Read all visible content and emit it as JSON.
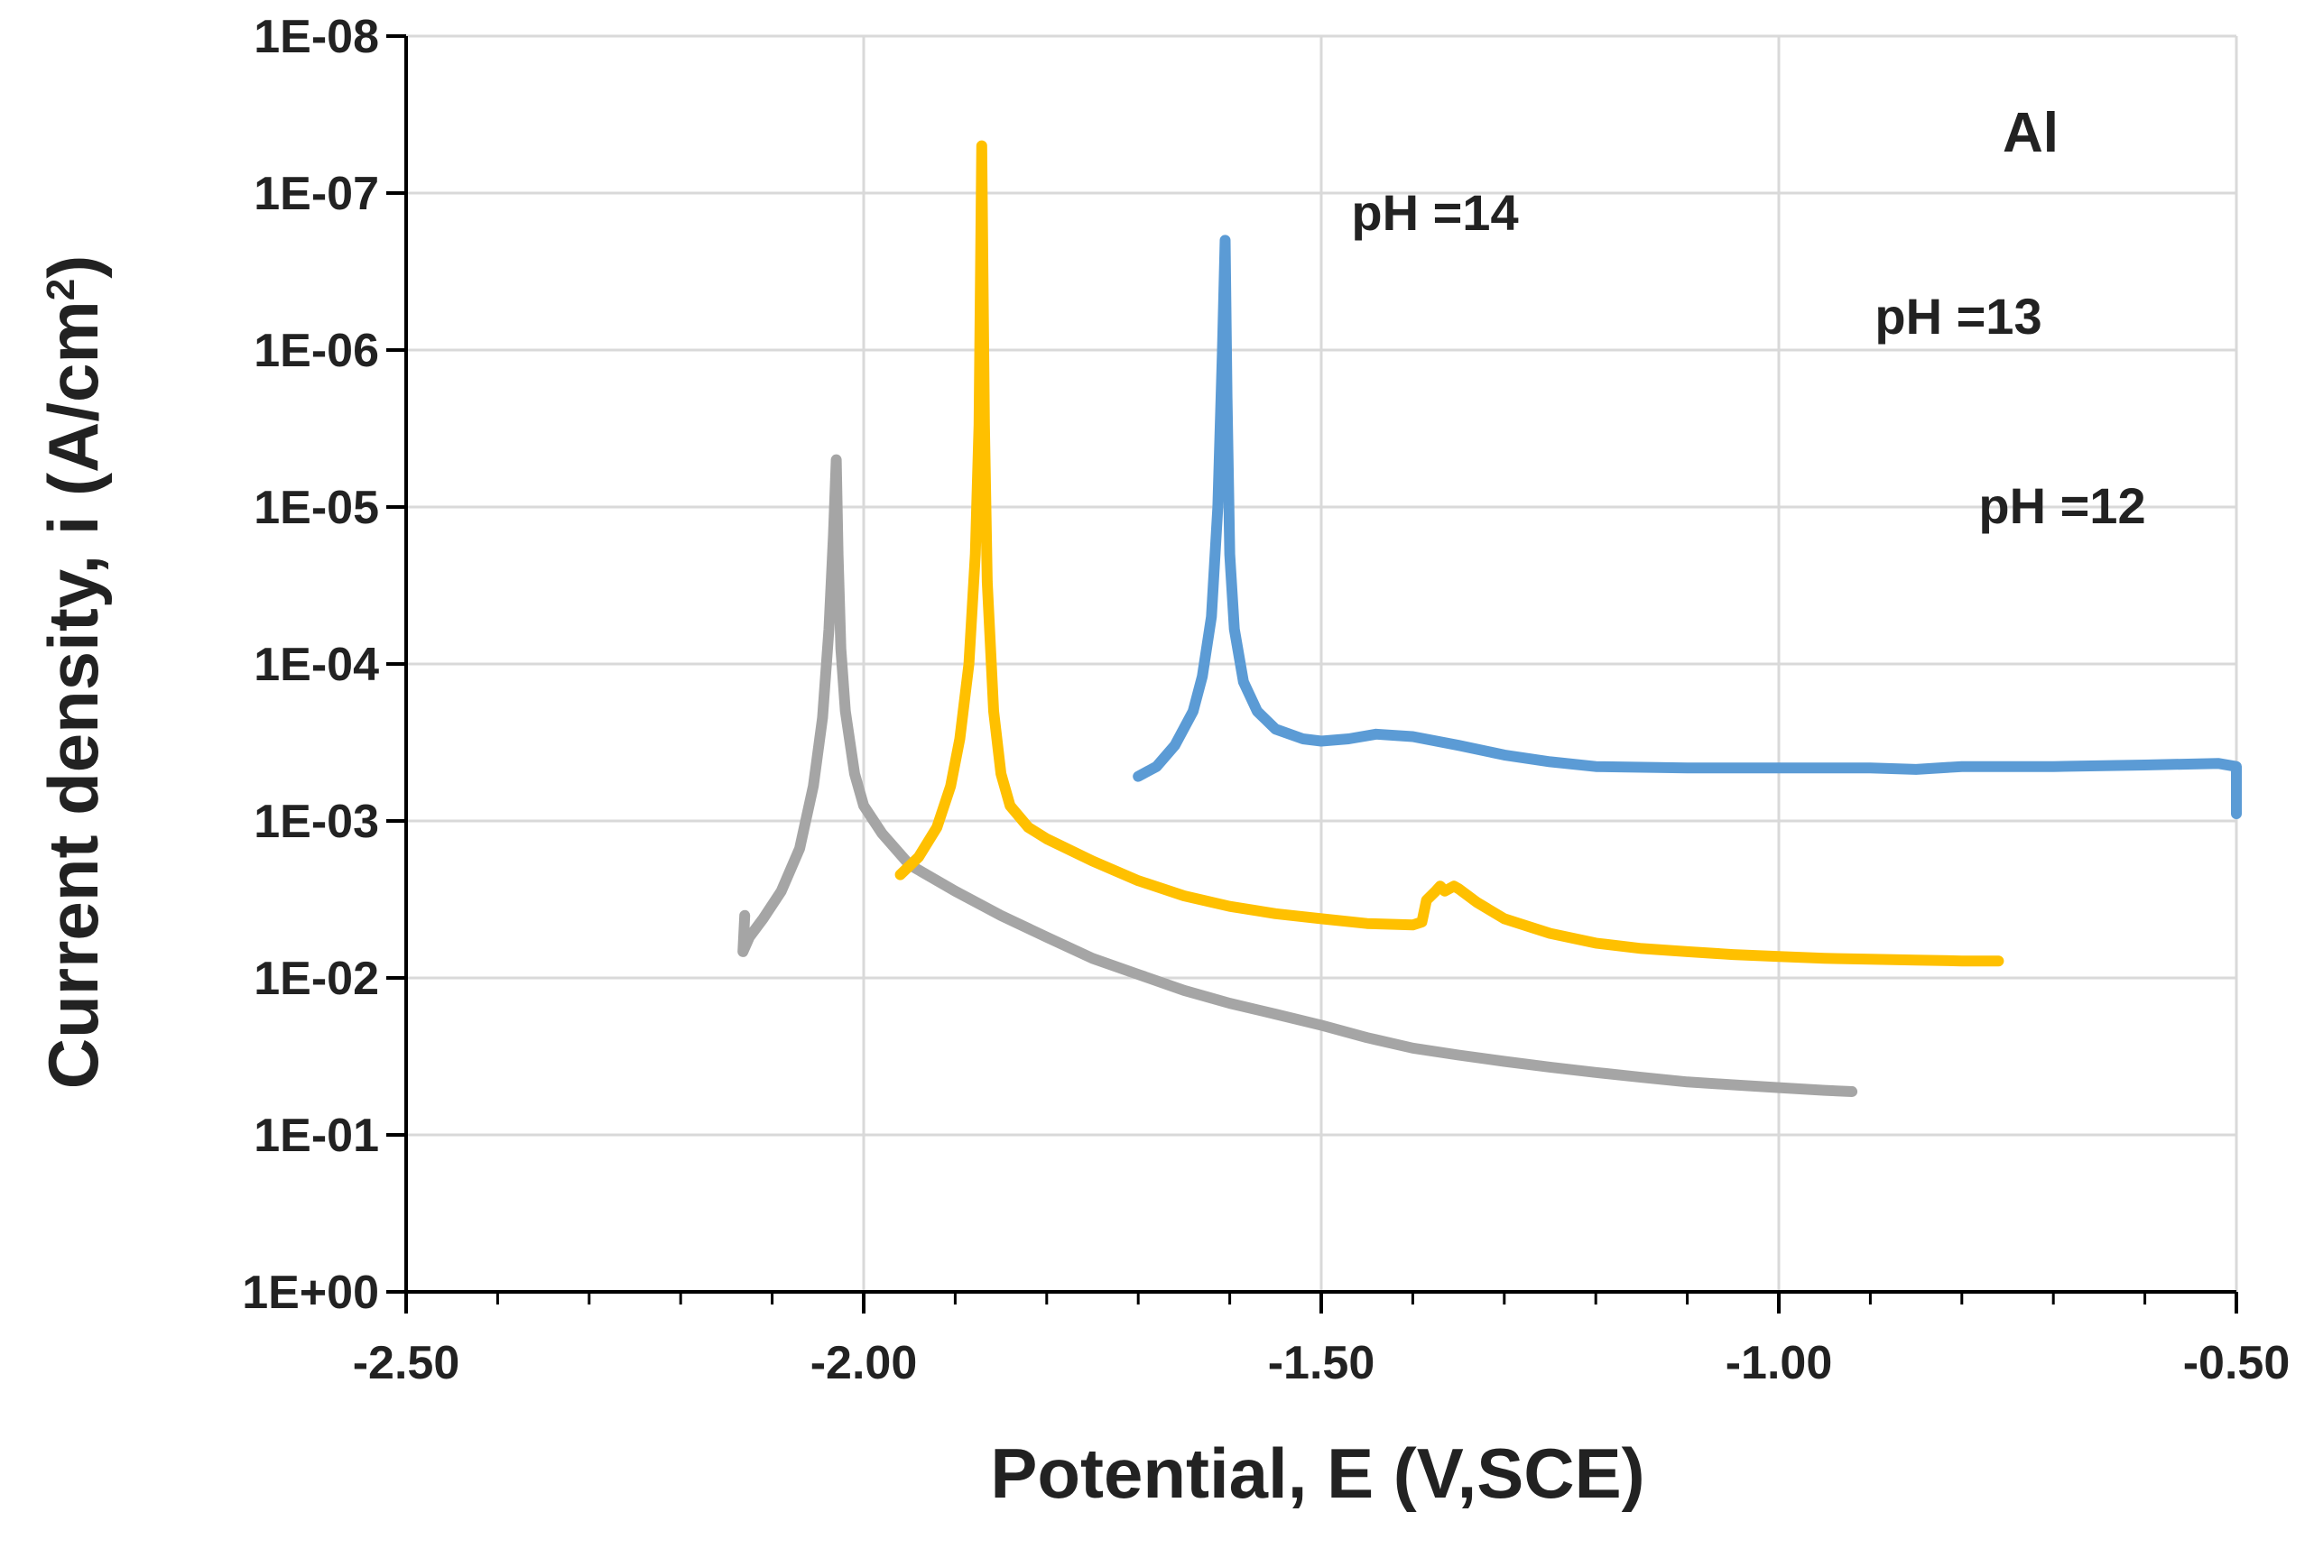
{
  "chart_data": {
    "type": "line",
    "title": "",
    "annotation_panel": "Al",
    "xlabel": "Potential, E (V,SCE)",
    "ylabel_main": "Current density, i  (A/cm",
    "ylabel_sup": "2",
    "ylabel_close": ")",
    "y_scale": "log",
    "xlim": [
      -2.5,
      -0.5
    ],
    "ylim_exp": [
      -8,
      0
    ],
    "x_ticks": [
      -2.5,
      -2.0,
      -1.5,
      -1.0,
      -0.5
    ],
    "x_tick_labels": [
      "-2.50",
      "-2.00",
      "-1.50",
      "-1.00",
      "-0.50"
    ],
    "y_ticks_exp": [
      0,
      -1,
      -2,
      -3,
      -4,
      -5,
      -6,
      -7,
      -8
    ],
    "y_tick_labels": [
      "1E+00",
      "1E-01",
      "1E-02",
      "1E-03",
      "1E-04",
      "1E-05",
      "1E-06",
      "1E-07",
      "1E-08"
    ],
    "x_minor_step": 0.1,
    "grid": true,
    "series": [
      {
        "name": "pH =14",
        "label": "pH =14",
        "color": "#a5a5a5",
        "points": [
          [
            -2.13,
            0.004
          ],
          [
            -2.132,
            0.0068
          ],
          [
            -2.125,
            0.0055
          ],
          [
            -2.11,
            0.0042
          ],
          [
            -2.09,
            0.0028
          ],
          [
            -2.07,
            0.0015
          ],
          [
            -2.055,
            0.0006
          ],
          [
            -2.045,
            0.00022
          ],
          [
            -2.038,
            6e-05
          ],
          [
            -2.033,
            1.5e-05
          ],
          [
            -2.03,
            5e-06
          ],
          [
            -2.028,
            2e-05
          ],
          [
            -2.025,
            8e-05
          ],
          [
            -2.02,
            0.0002
          ],
          [
            -2.01,
            0.0005
          ],
          [
            -2.0,
            0.0008
          ],
          [
            -1.98,
            0.0012
          ],
          [
            -1.95,
            0.0019
          ],
          [
            -1.9,
            0.0028
          ],
          [
            -1.85,
            0.004
          ],
          [
            -1.8,
            0.0055
          ],
          [
            -1.75,
            0.0075
          ],
          [
            -1.7,
            0.0095
          ],
          [
            -1.65,
            0.012
          ],
          [
            -1.6,
            0.0145
          ],
          [
            -1.55,
            0.017
          ],
          [
            -1.5,
            0.02
          ],
          [
            -1.45,
            0.024
          ],
          [
            -1.4,
            0.028
          ],
          [
            -1.35,
            0.031
          ],
          [
            -1.3,
            0.034
          ],
          [
            -1.25,
            0.037
          ],
          [
            -1.2,
            0.04
          ],
          [
            -1.15,
            0.043
          ],
          [
            -1.1,
            0.046
          ],
          [
            -1.05,
            0.048
          ],
          [
            -1.0,
            0.05
          ],
          [
            -0.95,
            0.052
          ],
          [
            -0.92,
            0.053
          ]
        ]
      },
      {
        "name": "pH =13",
        "label": "pH =13",
        "color": "#ffc000",
        "points": [
          [
            -1.96,
            0.0022
          ],
          [
            -1.94,
            0.0017
          ],
          [
            -1.92,
            0.0011
          ],
          [
            -1.905,
            0.0006
          ],
          [
            -1.895,
            0.0003
          ],
          [
            -1.885,
            0.0001
          ],
          [
            -1.878,
            2e-05
          ],
          [
            -1.874,
            3e-06
          ],
          [
            -1.871,
            5e-08
          ],
          [
            -1.868,
            3e-06
          ],
          [
            -1.865,
            3e-05
          ],
          [
            -1.858,
            0.0002
          ],
          [
            -1.85,
            0.0005
          ],
          [
            -1.84,
            0.0008
          ],
          [
            -1.82,
            0.0011
          ],
          [
            -1.8,
            0.0013
          ],
          [
            -1.75,
            0.0018
          ],
          [
            -1.7,
            0.0024
          ],
          [
            -1.65,
            0.003
          ],
          [
            -1.6,
            0.0035
          ],
          [
            -1.55,
            0.0039
          ],
          [
            -1.5,
            0.0042
          ],
          [
            -1.45,
            0.0045
          ],
          [
            -1.4,
            0.0046
          ],
          [
            -1.39,
            0.0044
          ],
          [
            -1.385,
            0.0032
          ],
          [
            -1.375,
            0.0028
          ],
          [
            -1.37,
            0.0026
          ],
          [
            -1.365,
            0.0028
          ],
          [
            -1.355,
            0.0026
          ],
          [
            -1.35,
            0.0027
          ],
          [
            -1.33,
            0.0033
          ],
          [
            -1.3,
            0.0042
          ],
          [
            -1.25,
            0.0052
          ],
          [
            -1.2,
            0.006
          ],
          [
            -1.15,
            0.0065
          ],
          [
            -1.1,
            0.0068
          ],
          [
            -1.05,
            0.0071
          ],
          [
            -1.0,
            0.0073
          ],
          [
            -0.95,
            0.0075
          ],
          [
            -0.9,
            0.0076
          ],
          [
            -0.85,
            0.0077
          ],
          [
            -0.8,
            0.0078
          ],
          [
            -0.76,
            0.0078
          ]
        ]
      },
      {
        "name": "pH =12",
        "label": "pH =12",
        "color": "#5b9bd5",
        "points": [
          [
            -1.7,
            0.00052
          ],
          [
            -1.68,
            0.00045
          ],
          [
            -1.66,
            0.00033
          ],
          [
            -1.64,
            0.0002
          ],
          [
            -1.63,
            0.00012
          ],
          [
            -1.62,
            5e-05
          ],
          [
            -1.613,
            1e-05
          ],
          [
            -1.608,
            1e-06
          ],
          [
            -1.605,
            2e-07
          ],
          [
            -1.603,
            2e-06
          ],
          [
            -1.6,
            2e-05
          ],
          [
            -1.595,
            6e-05
          ],
          [
            -1.585,
            0.00013
          ],
          [
            -1.57,
            0.0002
          ],
          [
            -1.55,
            0.00026
          ],
          [
            -1.52,
            0.0003
          ],
          [
            -1.5,
            0.00031
          ],
          [
            -1.47,
            0.0003
          ],
          [
            -1.44,
            0.00028
          ],
          [
            -1.4,
            0.00029
          ],
          [
            -1.35,
            0.00033
          ],
          [
            -1.3,
            0.00038
          ],
          [
            -1.25,
            0.00042
          ],
          [
            -1.2,
            0.00045
          ],
          [
            -1.1,
            0.00046
          ],
          [
            -1.0,
            0.00046
          ],
          [
            -0.9,
            0.00046
          ],
          [
            -0.85,
            0.00047
          ],
          [
            -0.8,
            0.00045
          ],
          [
            -0.7,
            0.00045
          ],
          [
            -0.6,
            0.00044
          ],
          [
            -0.52,
            0.00043
          ],
          [
            -0.5,
            0.00045
          ],
          [
            -0.5,
            0.0009
          ]
        ]
      }
    ]
  }
}
